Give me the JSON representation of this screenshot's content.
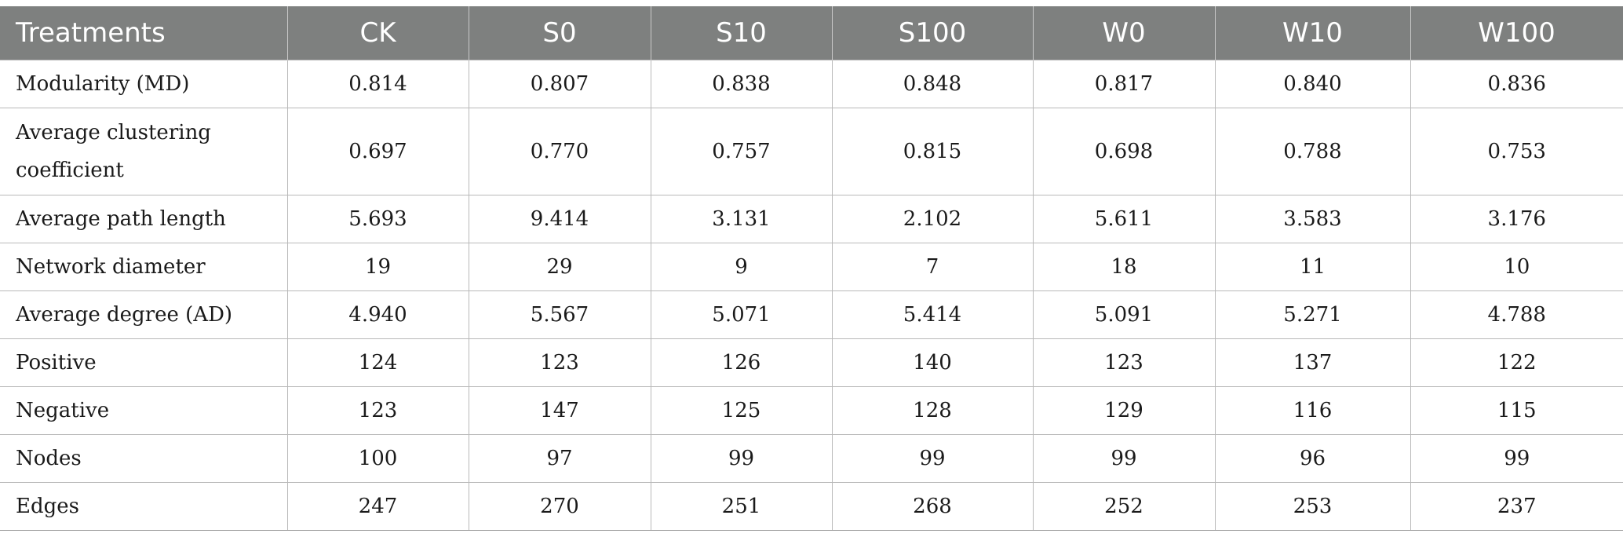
{
  "table": {
    "headers": [
      "Treatments",
      "CK",
      "S0",
      "S10",
      "S100",
      "W0",
      "W10",
      "W100"
    ],
    "rows": [
      {
        "label": "Modularity (MD)",
        "values": [
          "0.814",
          "0.807",
          "0.838",
          "0.848",
          "0.817",
          "0.840",
          "0.836"
        ]
      },
      {
        "label": "Average clustering coefficient",
        "values": [
          "0.697",
          "0.770",
          "0.757",
          "0.815",
          "0.698",
          "0.788",
          "0.753"
        ]
      },
      {
        "label": "Average path length",
        "values": [
          "5.693",
          "9.414",
          "3.131",
          "2.102",
          "5.611",
          "3.583",
          "3.176"
        ]
      },
      {
        "label": "Network diameter",
        "values": [
          "19",
          "29",
          "9",
          "7",
          "18",
          "11",
          "10"
        ]
      },
      {
        "label": "Average degree (AD)",
        "values": [
          "4.940",
          "5.567",
          "5.071",
          "5.414",
          "5.091",
          "5.271",
          "4.788"
        ]
      },
      {
        "label": "Positive",
        "values": [
          "124",
          "123",
          "126",
          "140",
          "123",
          "137",
          "122"
        ]
      },
      {
        "label": "Negative",
        "values": [
          "123",
          "147",
          "125",
          "128",
          "129",
          "116",
          "115"
        ]
      },
      {
        "label": "Nodes",
        "values": [
          "100",
          "97",
          "99",
          "99",
          "99",
          "96",
          "99"
        ]
      },
      {
        "label": "Edges",
        "values": [
          "247",
          "270",
          "251",
          "268",
          "252",
          "253",
          "237"
        ]
      }
    ]
  },
  "colors": {
    "header_bg": "#7e807f",
    "header_text": "#ffffff",
    "grid": "#b9b9b9"
  }
}
